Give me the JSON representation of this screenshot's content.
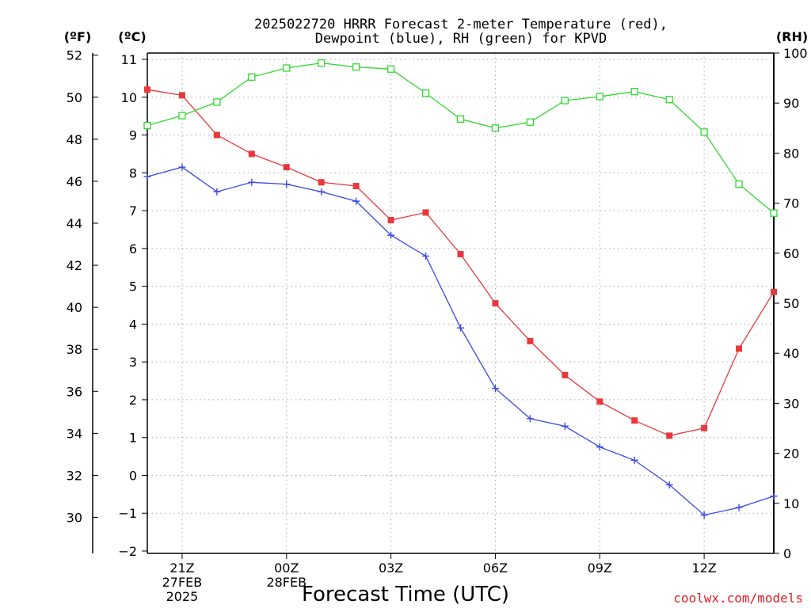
{
  "chart_data": {
    "type": "line",
    "title_lines": [
      "2025022720 HRRR Forecast 2-meter Temperature (red),",
      "Dewpoint (blue), RH (green) for KPVD"
    ],
    "axis_units": {
      "fahrenheit": "(ºF)",
      "celsius": "(ºC)",
      "rh": "(RH)"
    },
    "xlabel": "Forecast Time (UTC)",
    "credit": "coolwx.com/models",
    "x_hours": [
      0,
      1,
      2,
      3,
      4,
      5,
      6,
      7,
      8,
      9,
      10,
      11,
      12,
      13,
      14,
      15,
      16,
      17,
      18
    ],
    "x_ticks": [
      {
        "hour": 1,
        "lines": [
          "21Z",
          "27FEB",
          "2025"
        ]
      },
      {
        "hour": 4,
        "lines": [
          "00Z",
          "28FEB"
        ]
      },
      {
        "hour": 7,
        "lines": [
          "03Z"
        ]
      },
      {
        "hour": 10,
        "lines": [
          "06Z"
        ]
      },
      {
        "hour": 13,
        "lines": [
          "09Z"
        ]
      },
      {
        "hour": 16,
        "lines": [
          "12Z"
        ]
      }
    ],
    "xlim": [
      0,
      18
    ],
    "celsius_ylim": [
      -2,
      11
    ],
    "celsius_ticks": [
      -2,
      -1,
      0,
      1,
      2,
      3,
      4,
      5,
      6,
      7,
      8,
      9,
      10,
      11
    ],
    "fahrenheit_ticks": [
      30,
      32,
      34,
      36,
      38,
      40,
      42,
      44,
      46,
      48,
      50,
      52
    ],
    "rh_ylim": [
      0,
      100
    ],
    "rh_ticks": [
      0,
      10,
      20,
      30,
      40,
      50,
      60,
      70,
      80,
      90,
      100
    ],
    "grid": true,
    "series": [
      {
        "name": "Temperature",
        "axis": "celsius",
        "color": "#e8383d",
        "marker": "filled-square",
        "values": [
          10.2,
          10.05,
          9.0,
          8.5,
          8.15,
          7.75,
          7.65,
          6.75,
          6.95,
          5.85,
          4.55,
          3.55,
          2.65,
          1.95,
          1.45,
          1.05,
          1.25,
          3.35,
          4.85
        ]
      },
      {
        "name": "Dewpoint",
        "axis": "celsius",
        "color": "#3848e8",
        "marker": "plus",
        "values": [
          7.9,
          8.15,
          7.5,
          7.75,
          7.7,
          7.5,
          7.25,
          6.35,
          5.8,
          3.9,
          2.3,
          1.5,
          1.3,
          0.75,
          0.4,
          -0.25,
          -1.05,
          -0.85,
          -0.55
        ]
      },
      {
        "name": "RH",
        "axis": "rh",
        "color": "#30d830",
        "marker": "open-square",
        "values": [
          85.5,
          87.5,
          90.2,
          95.2,
          97.0,
          98.0,
          97.2,
          96.8,
          92.0,
          86.8,
          85.0,
          86.2,
          90.5,
          91.3,
          92.3,
          90.7,
          84.2,
          73.8,
          68.0
        ]
      }
    ]
  }
}
